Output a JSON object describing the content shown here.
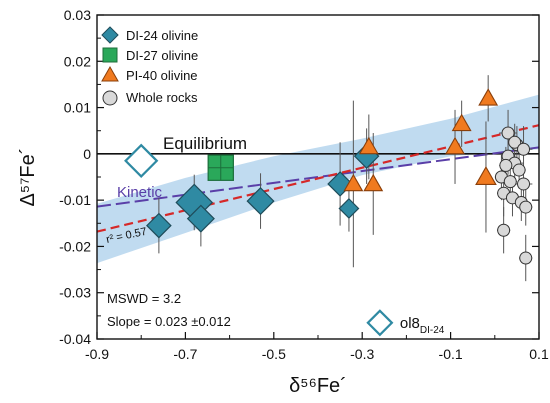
{
  "chart_data": {
    "type": "scatter",
    "xlabel": "δ⁵⁶Fe´",
    "ylabel": "Δ⁵⁷Fe´",
    "xlim": [
      -0.9,
      0.1
    ],
    "ylim": [
      -0.04,
      0.03
    ],
    "xticks": [
      "-0.9",
      "-0.7",
      "-0.5",
      "-0.3",
      "-0.1",
      "0.1"
    ],
    "yticks": [
      "-0.04",
      "-0.03",
      "-0.02",
      "-0.01",
      "0",
      "0.01",
      "0.02",
      "0.03"
    ],
    "grid": false,
    "legend_position": "top-left",
    "colors": {
      "di24": "#2f8aa3",
      "di27": "#2aa85a",
      "pi40": "#f07a1f",
      "whole_rock": "#d9d9d9",
      "band": "#b9d7ee",
      "regression": "#d62828",
      "kinetic": "#5a3fa8",
      "equilibrium": "#111111"
    },
    "series": [
      {
        "name": "DI-24 olivine",
        "marker": "diamond",
        "points": [
          {
            "x": -0.76,
            "y": -0.0155,
            "xerr": 0.02,
            "yerr": 0.006,
            "size": 1.0
          },
          {
            "x": -0.68,
            "y": -0.0105,
            "xerr": 0.02,
            "yerr": 0.006,
            "size": 1.5
          },
          {
            "x": -0.665,
            "y": -0.014,
            "xerr": 0.02,
            "yerr": 0.006,
            "size": 1.1
          },
          {
            "x": -0.53,
            "y": -0.0102,
            "xerr": 0.03,
            "yerr": 0.006,
            "size": 1.1
          },
          {
            "x": -0.35,
            "y": -0.0065,
            "xerr": 0.02,
            "yerr": 0.009,
            "size": 1.0
          },
          {
            "x": -0.33,
            "y": -0.0118,
            "xerr": 0.015,
            "yerr": 0.005,
            "size": 0.8
          },
          {
            "x": -0.29,
            "y": -0.0005,
            "xerr": 0.02,
            "yerr": 0.006,
            "size": 1.0
          }
        ],
        "open_points": [
          {
            "x": -0.8,
            "y": -0.0015,
            "label": "",
            "size": 1.3
          },
          {
            "x": -0.26,
            "y": -0.0365,
            "label": "ol8",
            "label_sub": "DI-24",
            "size": 1.0
          }
        ]
      },
      {
        "name": "DI-27 olivine",
        "marker": "square",
        "points": [
          {
            "x": -0.62,
            "y": -0.003,
            "xerr": 0.0,
            "yerr": 0.0,
            "size": 1.4
          }
        ]
      },
      {
        "name": "PI-40 olivine",
        "marker": "triangle",
        "points": [
          {
            "x": -0.32,
            "y": -0.0065,
            "xerr": 0.0,
            "yerr": 0.018,
            "size": 1.0
          },
          {
            "x": -0.285,
            "y": 0.0015,
            "xerr": 0.0,
            "yerr": 0.007,
            "size": 1.0
          },
          {
            "x": -0.275,
            "y": -0.0065,
            "xerr": 0.0,
            "yerr": 0.011,
            "size": 1.0
          },
          {
            "x": -0.09,
            "y": 0.0015,
            "xerr": 0.0,
            "yerr": 0.008,
            "size": 1.0
          },
          {
            "x": -0.075,
            "y": 0.0065,
            "xerr": 0.0,
            "yerr": 0.005,
            "size": 1.0
          },
          {
            "x": -0.02,
            "y": -0.005,
            "xerr": 0.0,
            "yerr": 0.012,
            "size": 1.1
          },
          {
            "x": -0.015,
            "y": 0.012,
            "xerr": 0.0,
            "yerr": 0.005,
            "size": 1.0
          }
        ]
      },
      {
        "name": "Whole rocks",
        "marker": "circle",
        "points": [
          {
            "x": 0.03,
            "y": 0.0045,
            "xerr": 0.02,
            "yerr": 0.005
          },
          {
            "x": 0.05,
            "y": 0.002,
            "xerr": 0.015,
            "yerr": 0.004
          },
          {
            "x": 0.045,
            "y": 0.0025,
            "xerr": 0.015,
            "yerr": 0.004
          },
          {
            "x": 0.065,
            "y": 0.001,
            "xerr": 0.02,
            "yerr": 0.005
          },
          {
            "x": 0.03,
            "y": -0.0005,
            "xerr": 0.015,
            "yerr": 0.004
          },
          {
            "x": 0.045,
            "y": -0.002,
            "xerr": 0.02,
            "yerr": 0.004
          },
          {
            "x": 0.025,
            "y": -0.0025,
            "xerr": 0.015,
            "yerr": 0.004
          },
          {
            "x": 0.055,
            "y": -0.0035,
            "xerr": 0.015,
            "yerr": 0.004
          },
          {
            "x": 0.015,
            "y": -0.005,
            "xerr": 0.015,
            "yerr": 0.005
          },
          {
            "x": 0.035,
            "y": -0.006,
            "xerr": 0.015,
            "yerr": 0.004
          },
          {
            "x": 0.065,
            "y": -0.0065,
            "xerr": 0.02,
            "yerr": 0.004
          },
          {
            "x": 0.02,
            "y": -0.0085,
            "xerr": 0.015,
            "yerr": 0.005
          },
          {
            "x": 0.04,
            "y": -0.0095,
            "xerr": 0.015,
            "yerr": 0.004
          },
          {
            "x": 0.06,
            "y": -0.0105,
            "xerr": 0.02,
            "yerr": 0.004
          },
          {
            "x": 0.07,
            "y": -0.0115,
            "xerr": 0.015,
            "yerr": 0.004
          },
          {
            "x": 0.02,
            "y": -0.0165,
            "xerr": 0.015,
            "yerr": 0.005
          },
          {
            "x": 0.07,
            "y": -0.0225,
            "xerr": 0.015,
            "yerr": 0.005
          }
        ]
      }
    ],
    "lines": {
      "equilibrium": {
        "label": "Equilibrium",
        "y": 0
      },
      "kinetic": {
        "label": "Kinetic",
        "x": [
          -0.9,
          0.1
        ],
        "y": [
          -0.0114,
          0.0014
        ]
      },
      "regression": {
        "r2_label": "r² = 0.57",
        "x": [
          -0.9,
          0.1
        ],
        "y": [
          -0.0168,
          0.0062
        ]
      },
      "confidence_band": {
        "x": [
          -0.9,
          -0.7,
          -0.5,
          -0.3,
          -0.1,
          0.1
        ],
        "upper": [
          -0.0108,
          -0.0052,
          -0.0005,
          0.0033,
          0.0076,
          0.0128
        ],
        "lower": [
          -0.0236,
          -0.0171,
          -0.0105,
          -0.0046,
          -0.0005,
          0.001
        ]
      }
    },
    "annotations": {
      "mswd": "MSWD = 3.2",
      "slope": "Slope = 0.023 ±0.012"
    }
  }
}
